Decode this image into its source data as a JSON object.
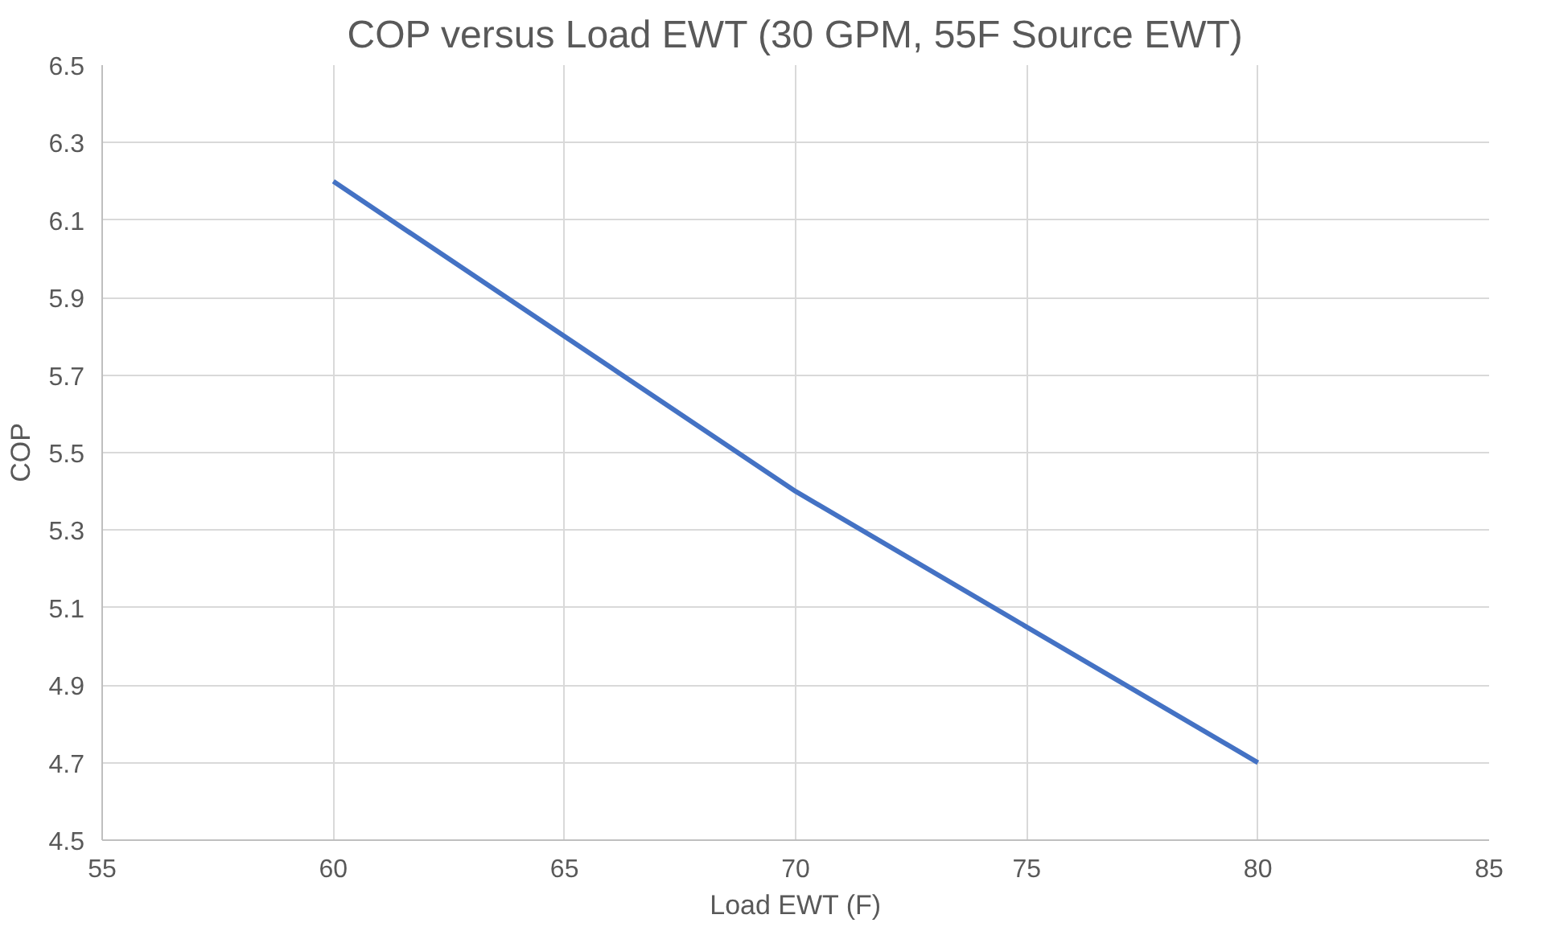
{
  "chart_data": {
    "type": "line",
    "title": "COP versus Load EWT (30 GPM, 55F Source EWT)",
    "xlabel": "Load EWT (F)",
    "ylabel": "COP",
    "x": [
      60,
      70,
      80
    ],
    "series": [
      {
        "color": "#4472c4",
        "values": [
          6.2,
          5.4,
          4.7
        ]
      }
    ],
    "xlim": [
      55,
      85
    ],
    "xticks": [
      55,
      60,
      65,
      70,
      75,
      80,
      85
    ],
    "ylim": [
      4.5,
      6.5
    ],
    "yticks": [
      4.5,
      4.7,
      4.9,
      5.1,
      5.3,
      5.5,
      5.7,
      5.9,
      6.1,
      6.3,
      6.5
    ],
    "grid": true,
    "marker": "none",
    "line_style": "solid"
  }
}
